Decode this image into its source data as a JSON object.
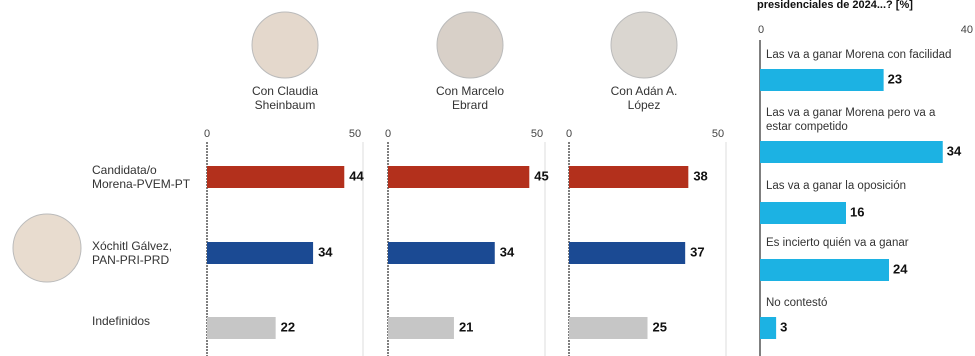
{
  "chart_data": [
    {
      "type": "bar",
      "title": "Con Claudia Sheinbaum",
      "categories": [
        "Candidata/o Morena-PVEM-PT",
        "Xóchitl Gálvez, PAN-PRI-PRD",
        "Indefinidos"
      ],
      "values": [
        44,
        34,
        22
      ],
      "colors": [
        "#b3301c",
        "#1b4a93",
        "#c6c6c6"
      ],
      "xlim": [
        0,
        50
      ],
      "xticks": [
        0,
        50
      ]
    },
    {
      "type": "bar",
      "title": "Con Marcelo Ebrard",
      "values": [
        45,
        34,
        21
      ],
      "colors": [
        "#b3301c",
        "#1b4a93",
        "#c6c6c6"
      ],
      "xlim": [
        0,
        50
      ],
      "xticks": [
        0,
        50
      ]
    },
    {
      "type": "bar",
      "title": "Con Adán A. López",
      "values": [
        38,
        37,
        25
      ],
      "colors": [
        "#b3301c",
        "#1b4a93",
        "#c6c6c6"
      ],
      "xlim": [
        0,
        50
      ],
      "xticks": [
        0,
        50
      ]
    },
    {
      "type": "bar",
      "title": "presidenciales de 2024...? [%]",
      "categories": [
        "Las va a ganar Morena con facilidad",
        "Las va a ganar Morena pero va a estar competido",
        "Las va a ganar la oposición",
        "Es incierto quién va a ganar",
        "No contestó"
      ],
      "values": [
        23,
        34,
        16,
        24,
        3
      ],
      "color": "#1cb2e3",
      "xlim": [
        0,
        40
      ],
      "xticks": [
        0,
        40
      ]
    }
  ]
}
